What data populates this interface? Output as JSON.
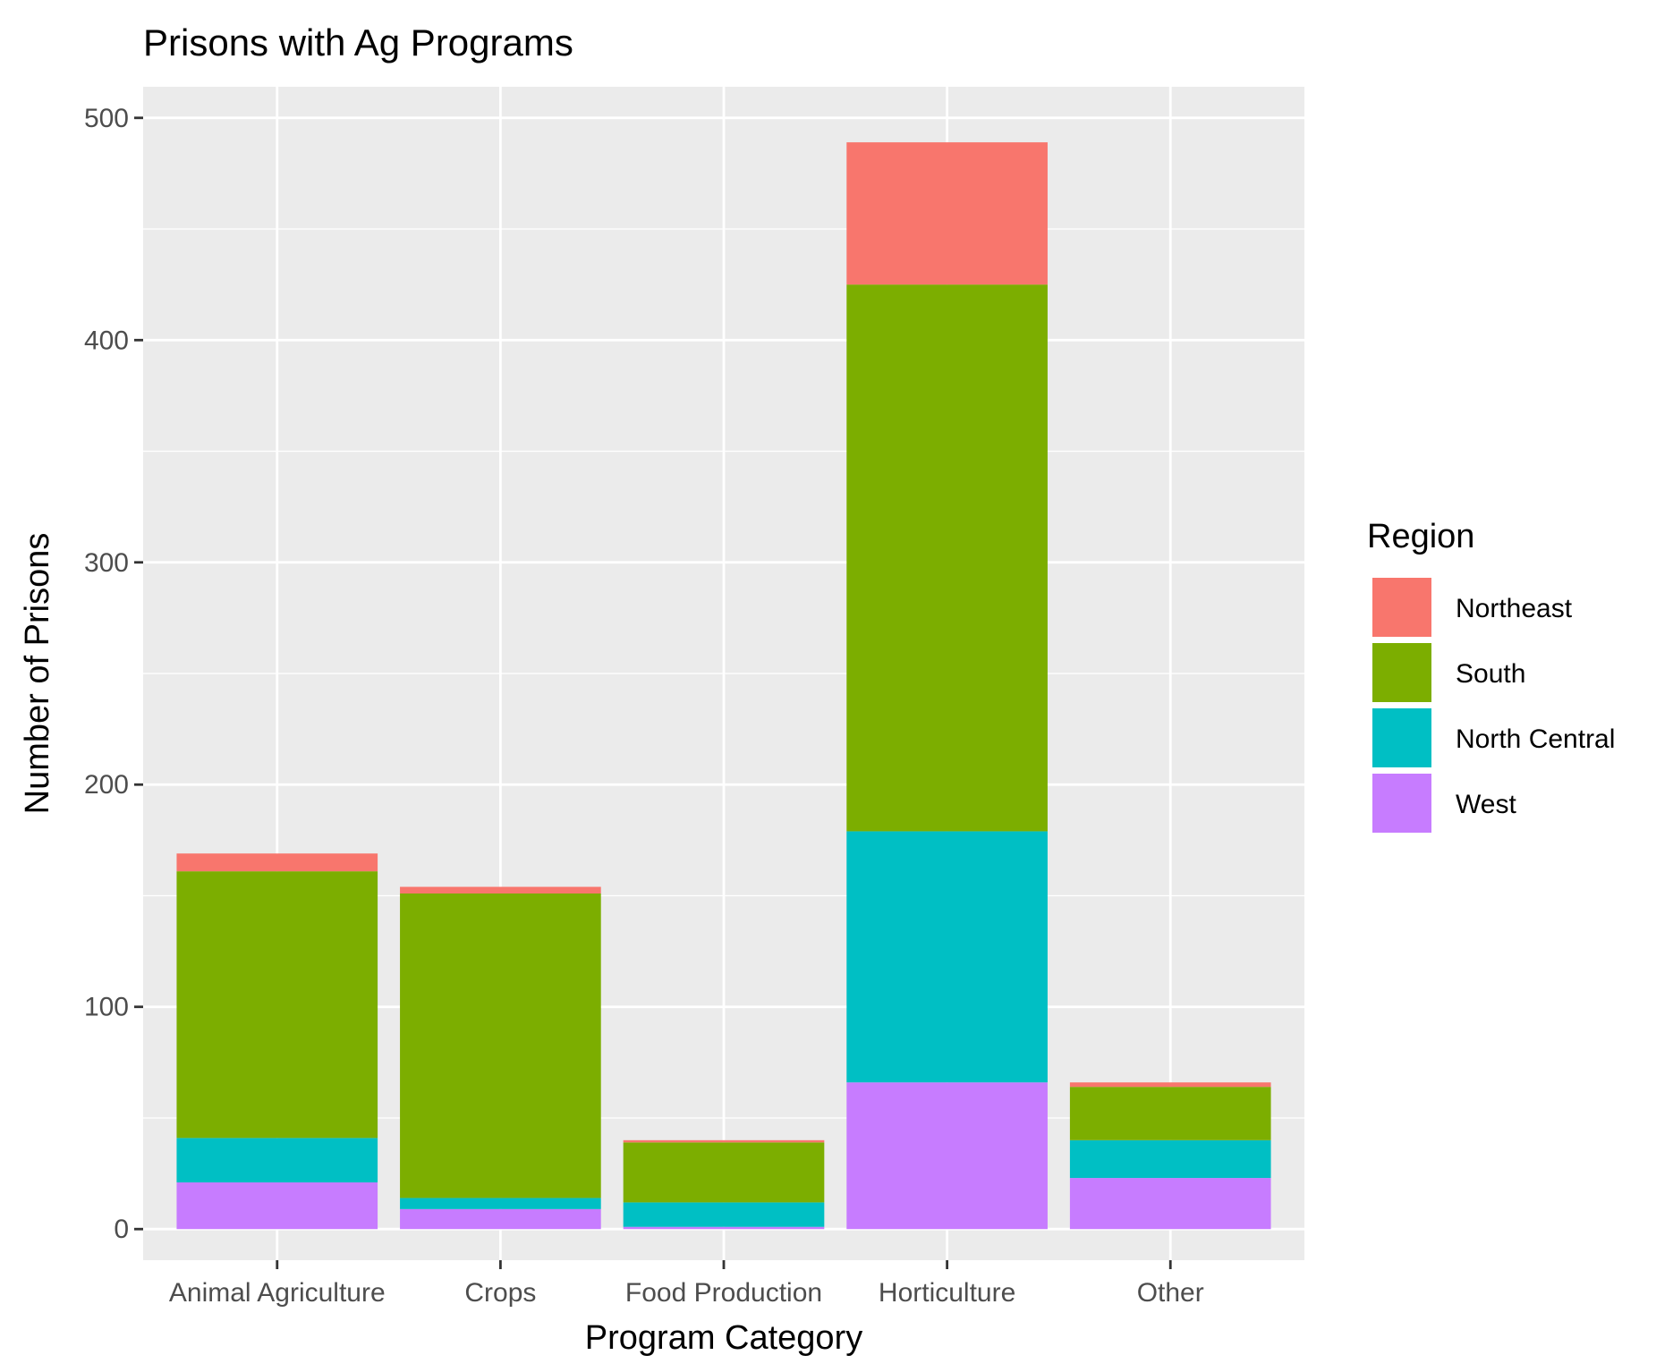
{
  "chart_data": {
    "type": "bar",
    "stacked": true,
    "title": "Prisons with Ag Programs",
    "xlabel": "Program Category",
    "ylabel": "Number of Prisons",
    "categories": [
      "Animal Agriculture",
      "Crops",
      "Food Production",
      "Horticulture",
      "Other"
    ],
    "ylim": [
      -14,
      514
    ],
    "yticks": [
      0,
      100,
      200,
      300,
      400,
      500
    ],
    "grid": true,
    "legend": {
      "title": "Region",
      "position": "right"
    },
    "series": [
      {
        "name": "West",
        "color": "#C77CFF",
        "values": [
          21,
          9,
          1,
          66,
          23
        ]
      },
      {
        "name": "North Central",
        "color": "#00BFC4",
        "values": [
          20,
          5,
          11,
          113,
          17
        ]
      },
      {
        "name": "South",
        "color": "#7CAE00",
        "values": [
          120,
          137,
          27,
          246,
          24
        ]
      },
      {
        "name": "Northeast",
        "color": "#F8766D",
        "values": [
          8,
          3,
          1,
          64,
          2
        ]
      }
    ],
    "legend_order": [
      "Northeast",
      "South",
      "North Central",
      "West"
    ]
  }
}
